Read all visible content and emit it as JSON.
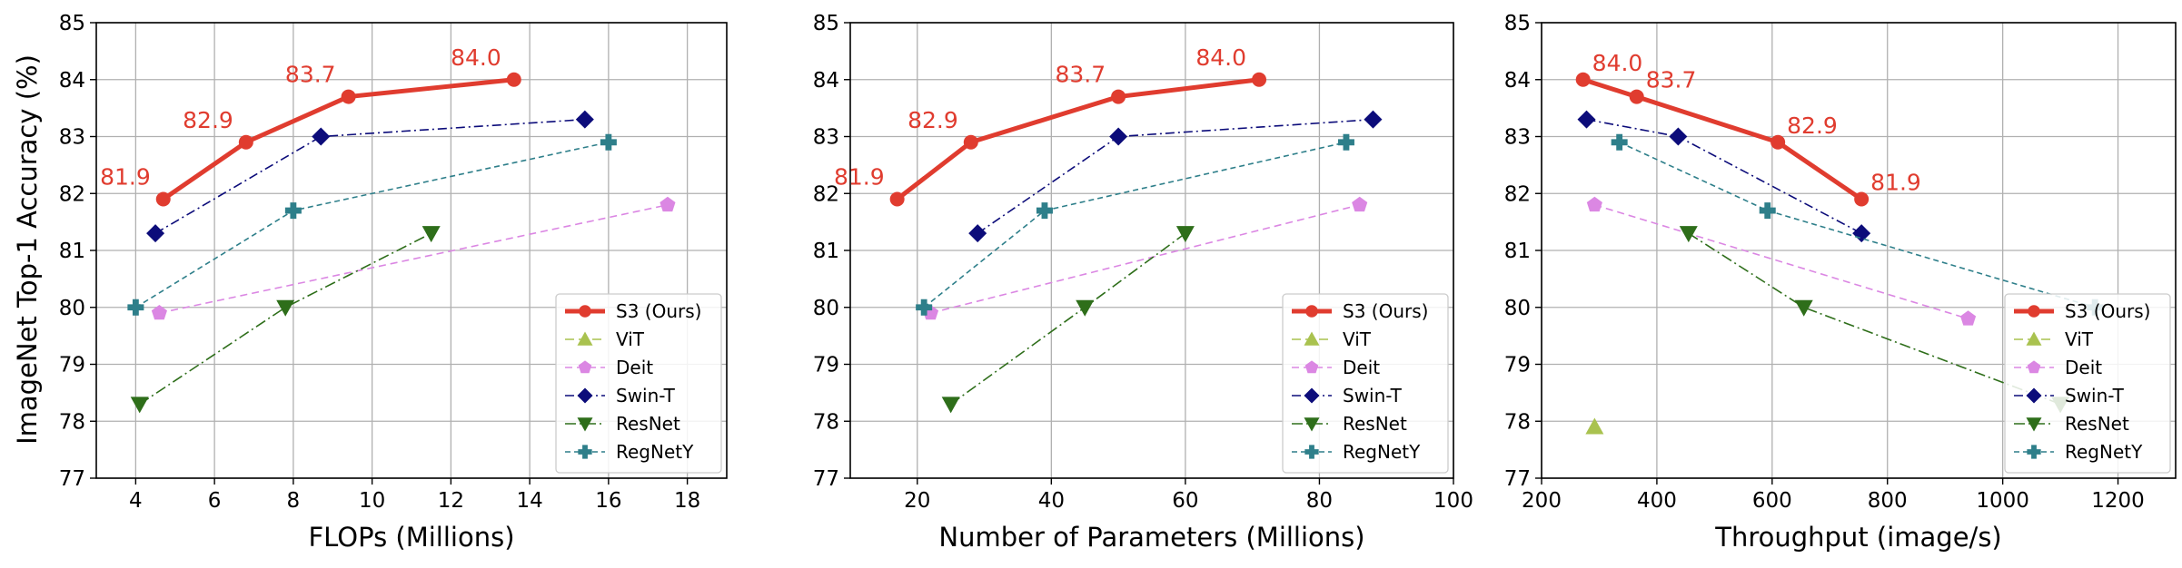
{
  "figure": {
    "ylabel": "ImageNet Top-1 Accuracy (%)"
  },
  "colors": {
    "S3 (Ours)": "#e03c2f",
    "ViT": "#a9c24f",
    "Deit": "#db87e3",
    "Swin-T": "#0c0c7a",
    "ResNet": "#2e6e1a",
    "RegNetY": "#2e7f8a"
  },
  "chart_data": [
    {
      "type": "line",
      "xlabel": "FLOPs (Millions)",
      "ylabel": "ImageNet Top-1 Accuracy (%)",
      "xlim": [
        3,
        19
      ],
      "ylim": [
        77,
        85
      ],
      "xticks": [
        4,
        6,
        8,
        10,
        12,
        14,
        16,
        18
      ],
      "yticks": [
        77,
        78,
        79,
        80,
        81,
        82,
        83,
        84,
        85
      ],
      "grid": true,
      "legend_position": "lower right",
      "series": [
        {
          "name": "S3 (Ours)",
          "x": [
            4.7,
            6.8,
            9.4,
            13.6
          ],
          "y": [
            81.9,
            82.9,
            83.7,
            84.0
          ],
          "labels": [
            "81.9",
            "82.9",
            "83.7",
            "84.0"
          ]
        },
        {
          "name": "ViT",
          "x": [],
          "y": []
        },
        {
          "name": "Deit",
          "x": [
            4.6,
            17.5
          ],
          "y": [
            79.9,
            81.8
          ]
        },
        {
          "name": "Swin-T",
          "x": [
            4.5,
            8.7,
            15.4
          ],
          "y": [
            81.3,
            83.0,
            83.3
          ]
        },
        {
          "name": "ResNet",
          "x": [
            4.1,
            7.8,
            11.5
          ],
          "y": [
            78.3,
            80.0,
            81.3
          ]
        },
        {
          "name": "RegNetY",
          "x": [
            4.0,
            8.0,
            16.0
          ],
          "y": [
            80.0,
            81.7,
            82.9
          ]
        }
      ]
    },
    {
      "type": "line",
      "xlabel": "Number of Parameters (Millions)",
      "ylabel": "",
      "xlim": [
        10,
        100
      ],
      "ylim": [
        77,
        85
      ],
      "xticks": [
        20,
        40,
        60,
        80,
        100
      ],
      "yticks": [
        77,
        78,
        79,
        80,
        81,
        82,
        83,
        84,
        85
      ],
      "grid": true,
      "legend_position": "lower right",
      "series": [
        {
          "name": "S3 (Ours)",
          "x": [
            17,
            28,
            50,
            71
          ],
          "y": [
            81.9,
            82.9,
            83.7,
            84.0
          ],
          "labels": [
            "81.9",
            "82.9",
            "83.7",
            "84.0"
          ]
        },
        {
          "name": "ViT",
          "x": [],
          "y": []
        },
        {
          "name": "Deit",
          "x": [
            22,
            86
          ],
          "y": [
            79.9,
            81.8
          ]
        },
        {
          "name": "Swin-T",
          "x": [
            29,
            50,
            88
          ],
          "y": [
            81.3,
            83.0,
            83.3
          ]
        },
        {
          "name": "ResNet",
          "x": [
            25,
            45,
            60
          ],
          "y": [
            78.3,
            80.0,
            81.3
          ]
        },
        {
          "name": "RegNetY",
          "x": [
            21,
            39,
            84
          ],
          "y": [
            80.0,
            81.7,
            82.9
          ]
        }
      ]
    },
    {
      "type": "line",
      "xlabel": "Throughput (image/s)",
      "ylabel": "",
      "xlim": [
        200,
        1300
      ],
      "ylim": [
        77,
        85
      ],
      "xticks": [
        200,
        400,
        600,
        800,
        1000,
        1200
      ],
      "yticks": [
        77,
        78,
        79,
        80,
        81,
        82,
        83,
        84,
        85
      ],
      "grid": true,
      "legend_position": "lower right",
      "series": [
        {
          "name": "S3 (Ours)",
          "x": [
            272,
            365,
            610,
            755
          ],
          "y": [
            84.0,
            83.7,
            82.9,
            81.9
          ],
          "labels": [
            "84.0",
            "83.7",
            "82.9",
            "81.9"
          ]
        },
        {
          "name": "ViT",
          "x": [
            292
          ],
          "y": [
            77.9
          ]
        },
        {
          "name": "Deit",
          "x": [
            292,
            940
          ],
          "y": [
            81.8,
            79.8
          ]
        },
        {
          "name": "Swin-T",
          "x": [
            278,
            437,
            755
          ],
          "y": [
            83.3,
            83.0,
            81.3
          ]
        },
        {
          "name": "ResNet",
          "x": [
            455,
            655,
            1100
          ],
          "y": [
            81.3,
            80.0,
            78.3
          ]
        },
        {
          "name": "RegNetY",
          "x": [
            335,
            592,
            1160
          ],
          "y": [
            82.9,
            81.7,
            80.0
          ]
        }
      ]
    }
  ]
}
